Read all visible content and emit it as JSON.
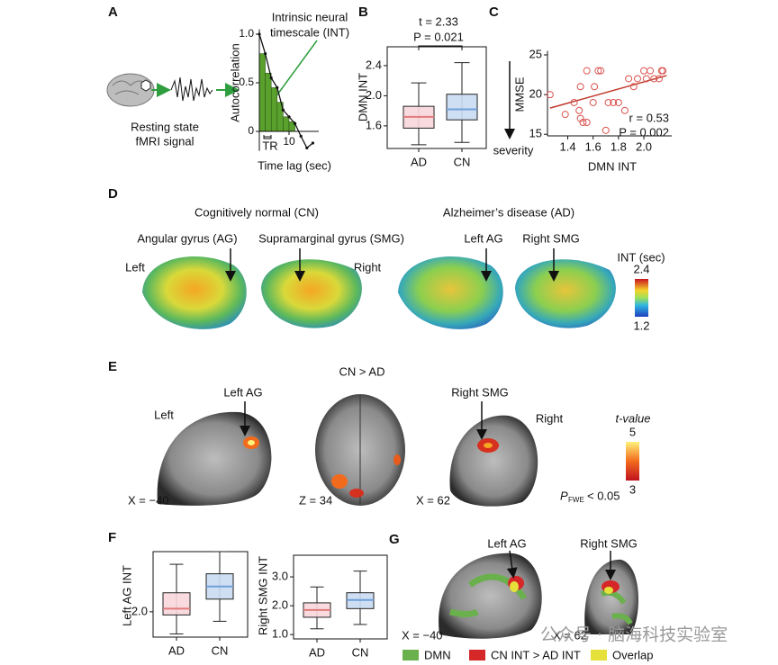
{
  "panel_a": {
    "label": "A",
    "signal_caption": [
      "Resting state",
      "fMRI signal"
    ],
    "int_caption": [
      "Intrinsic neural",
      "timescale (INT)"
    ],
    "y_label": "Autocorrelation",
    "x_label": "Time lag (sec)",
    "tr_label": "TR",
    "xlim": [
      0,
      20
    ],
    "ylim": [
      -0.2,
      1.05
    ],
    "xticks": [
      10
    ],
    "yticks": [
      0,
      0.5,
      {
        "value": 1,
        "label": "1.0"
      }
    ],
    "bars": {
      "x": [
        1,
        3,
        5,
        7,
        9,
        11
      ],
      "values": [
        0.8,
        0.6,
        0.45,
        0.3,
        0.15,
        0.1
      ],
      "color": "#5aa02c"
    },
    "curve": {
      "x": [
        0,
        2,
        4,
        6,
        8,
        10,
        12,
        14,
        16,
        18
      ],
      "values": [
        1.0,
        0.8,
        0.55,
        0.45,
        0.22,
        0.15,
        0.08,
        -0.05,
        -0.17,
        -0.12
      ]
    }
  },
  "panel_b": {
    "label": "B",
    "stat_lines": [
      "t = 2.33",
      "P = 0.021"
    ],
    "y_label": "DMN INT",
    "ylim": [
      1.3,
      2.65
    ],
    "yticks": [
      1.6,
      {
        "value": 2,
        "label": "2.0"
      },
      2.4
    ],
    "groups": [
      {
        "name": "AD",
        "color": "#e07b7b",
        "box_fill": "#f8d7dc",
        "whisker_low": 1.35,
        "q1": 1.57,
        "median": 1.72,
        "q3": 1.86,
        "whisker_high": 2.17
      },
      {
        "name": "CN",
        "color": "#6f9fd8",
        "box_fill": "#c9dcf2",
        "whisker_low": 1.38,
        "q1": 1.68,
        "median": 1.82,
        "q3": 2.02,
        "whisker_high": 2.44
      }
    ]
  },
  "panel_c": {
    "label": "C",
    "y_label": "MMSE",
    "x_label": "DMN INT",
    "severity_label": "severity",
    "stat_lines": [
      "r = 0.53",
      "P = 0.002"
    ],
    "xlim": [
      1.24,
      2.22
    ],
    "ylim": [
      14.8,
      25.5
    ],
    "xticks": [
      1.4,
      1.6,
      1.8,
      {
        "value": 2,
        "label": "2.0"
      }
    ],
    "yticks": [
      15,
      20,
      25
    ],
    "point_color": "#d9534f",
    "line_color": "#c0392b",
    "x": [
      1.26,
      1.38,
      1.45,
      1.49,
      1.5,
      1.52,
      1.55,
      1.5,
      1.55,
      1.6,
      1.61,
      1.64,
      1.66,
      1.72,
      1.76,
      1.8,
      1.85,
      1.88,
      1.92,
      1.95,
      2.0,
      2.02,
      2.05,
      2.08,
      2.12,
      2.14,
      2.15,
      1.7
    ],
    "y": [
      20,
      17.5,
      19,
      18,
      17,
      16.5,
      16.5,
      21,
      23,
      19,
      21,
      23,
      23,
      19,
      19,
      19,
      18,
      22,
      21,
      22,
      23,
      22,
      23,
      22,
      22,
      23,
      23,
      15.5
    ],
    "fit_line": {
      "x": [
        1.26,
        2.18
      ],
      "y": [
        18.3,
        22.4
      ]
    }
  },
  "panel_d": {
    "label": "D",
    "cn_title": "Cognitively normal (CN)",
    "ad_title": "Alzheimer’s disease (AD)",
    "region_labels": [
      "Angular gyrus (AG)",
      "Supramarginal gyrus (SMG)",
      "Left AG",
      "Right SMG"
    ],
    "side_labels": [
      "Left",
      "Right"
    ],
    "colorbar": {
      "title": "INT (sec)",
      "ticks": [
        1.2,
        2.4
      ]
    }
  },
  "panel_e": {
    "label": "E",
    "contrast": "CN > AD",
    "region_labels": [
      "Left AG",
      "Right SMG"
    ],
    "side_labels": [
      "Left",
      "Right"
    ],
    "slice_labels": [
      "X = −40",
      "Z = 34",
      "X = 62"
    ],
    "colorbar": {
      "title": "t-value",
      "ticks": [
        3,
        5
      ]
    },
    "threshold": {
      "symbol": "P",
      "subscript": "FWE",
      "text": "< 0.05"
    }
  },
  "panel_f": {
    "label": "F",
    "charts": [
      {
        "y_label": "Left AG INT",
        "ylim": [
          1.6,
          2.95
        ],
        "yticks": [
          {
            "value": 2,
            "label": "2.0"
          }
        ],
        "groups": [
          {
            "name": "AD",
            "color": "#e07b7b",
            "box_fill": "#f8d7dc",
            "whisker_low": 1.65,
            "q1": 1.95,
            "median": 2.05,
            "q3": 2.3,
            "whisker_high": 2.75
          },
          {
            "name": "CN",
            "color": "#6f9fd8",
            "box_fill": "#c9dcf2",
            "whisker_low": 1.85,
            "q1": 2.2,
            "median": 2.4,
            "q3": 2.6,
            "whisker_high": 2.95
          }
        ]
      },
      {
        "y_label": "Right SMG INT",
        "ylim": [
          0.85,
          3.75
        ],
        "yticks": [
          {
            "value": 1,
            "label": "1.0"
          },
          {
            "value": 2,
            "label": "2.0"
          },
          {
            "value": 3,
            "label": "3.0"
          }
        ],
        "groups": [
          {
            "name": "AD",
            "color": "#e07b7b",
            "box_fill": "#f8d7dc",
            "whisker_low": 1.2,
            "q1": 1.6,
            "median": 1.85,
            "q3": 2.1,
            "whisker_high": 2.65
          },
          {
            "name": "CN",
            "color": "#6f9fd8",
            "box_fill": "#c9dcf2",
            "whisker_low": 1.35,
            "q1": 1.9,
            "median": 2.2,
            "q3": 2.45,
            "whisker_high": 3.2
          }
        ]
      }
    ]
  },
  "panel_g": {
    "label": "G",
    "region_labels": [
      "Left AG",
      "Right SMG"
    ],
    "slice_labels": [
      "X = −40",
      "X = 62"
    ],
    "legend": [
      {
        "name": "DMN",
        "color": "#6ab04c"
      },
      {
        "name": "CN INT > AD INT",
        "color": "#d62728"
      },
      {
        "name": "Overlap",
        "color": "#e6e03a"
      }
    ]
  },
  "watermark": "公众号 · 脑海科技实验室"
}
